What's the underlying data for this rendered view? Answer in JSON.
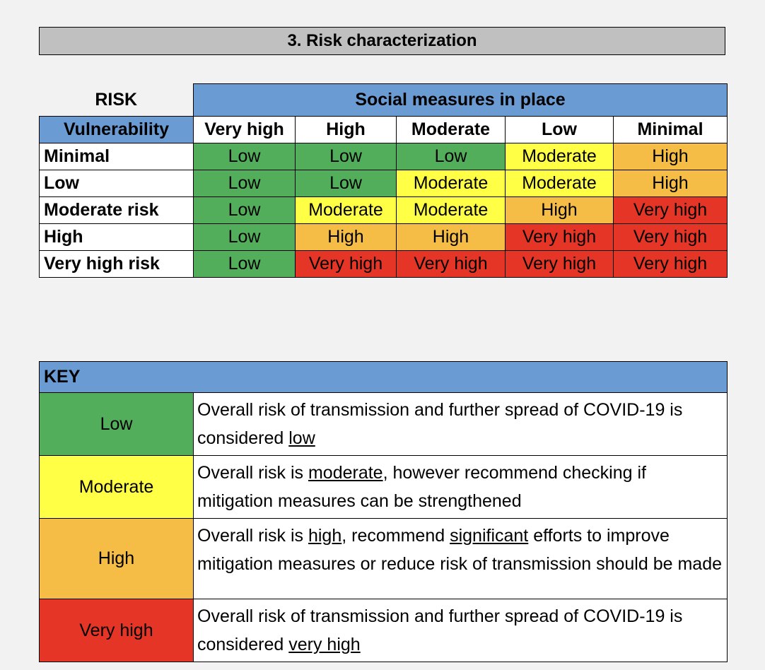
{
  "section_title": "3. Risk characterization",
  "matrix": {
    "corner_label": "RISK",
    "social_header": "Social measures in place",
    "vulnerability_label": "Vulnerability",
    "columns": [
      "Very high",
      "High",
      "Moderate",
      "Low",
      "Minimal"
    ],
    "rows": [
      {
        "label": "Minimal",
        "values": [
          "Low",
          "Low",
          "Low",
          "Moderate",
          "High"
        ],
        "levels": [
          "low",
          "low",
          "low",
          "moderate",
          "high"
        ]
      },
      {
        "label": "Low",
        "values": [
          "Low",
          "Low",
          "Moderate",
          "Moderate",
          "High"
        ],
        "levels": [
          "low",
          "low",
          "moderate",
          "moderate",
          "high"
        ]
      },
      {
        "label": "Moderate risk",
        "values": [
          "Low",
          "Moderate",
          "Moderate",
          "High",
          "Very high"
        ],
        "levels": [
          "low",
          "moderate",
          "moderate",
          "high",
          "veryhigh"
        ]
      },
      {
        "label": "High",
        "values": [
          "Low",
          "High",
          "High",
          "Very high",
          "Very high"
        ],
        "levels": [
          "low",
          "high",
          "high",
          "veryhigh",
          "veryhigh"
        ]
      },
      {
        "label": "Very high risk",
        "values": [
          "Low",
          "Very high",
          "Very high",
          "Very high",
          "Very high"
        ],
        "levels": [
          "low",
          "veryhigh",
          "veryhigh",
          "veryhigh",
          "veryhigh"
        ]
      }
    ]
  },
  "key": {
    "title": "KEY",
    "items": [
      {
        "level": "low",
        "label": "Low",
        "pre": "Overall risk of transmission and further spread of COVID-19 is considered ",
        "u1": "low",
        "mid": "",
        "u2": "",
        "post": ""
      },
      {
        "level": "moderate",
        "label": "Moderate",
        "pre": "Overall risk is ",
        "u1": "moderate",
        "mid": ", however recommend checking if mitigation measures can be strengthened",
        "u2": "",
        "post": ""
      },
      {
        "level": "high",
        "label": "High",
        "pre": "Overall risk is ",
        "u1": "high",
        "mid": ", recommend ",
        "u2": "significant",
        "post": " efforts to improve mitigation measures or reduce risk of transmission should be made"
      },
      {
        "level": "veryhigh",
        "label": "Very high",
        "pre": "Overall risk of transmission and further spread of COVID-19 is considered ",
        "u1": "very high",
        "mid": "",
        "u2": "",
        "post": ""
      }
    ]
  },
  "colors": {
    "low": "#52ae5a",
    "moderate": "#ffff45",
    "high": "#f5bd45",
    "veryhigh": "#e53526",
    "header_blue": "#6b9bd3",
    "title_gray": "#c0c0c0"
  }
}
